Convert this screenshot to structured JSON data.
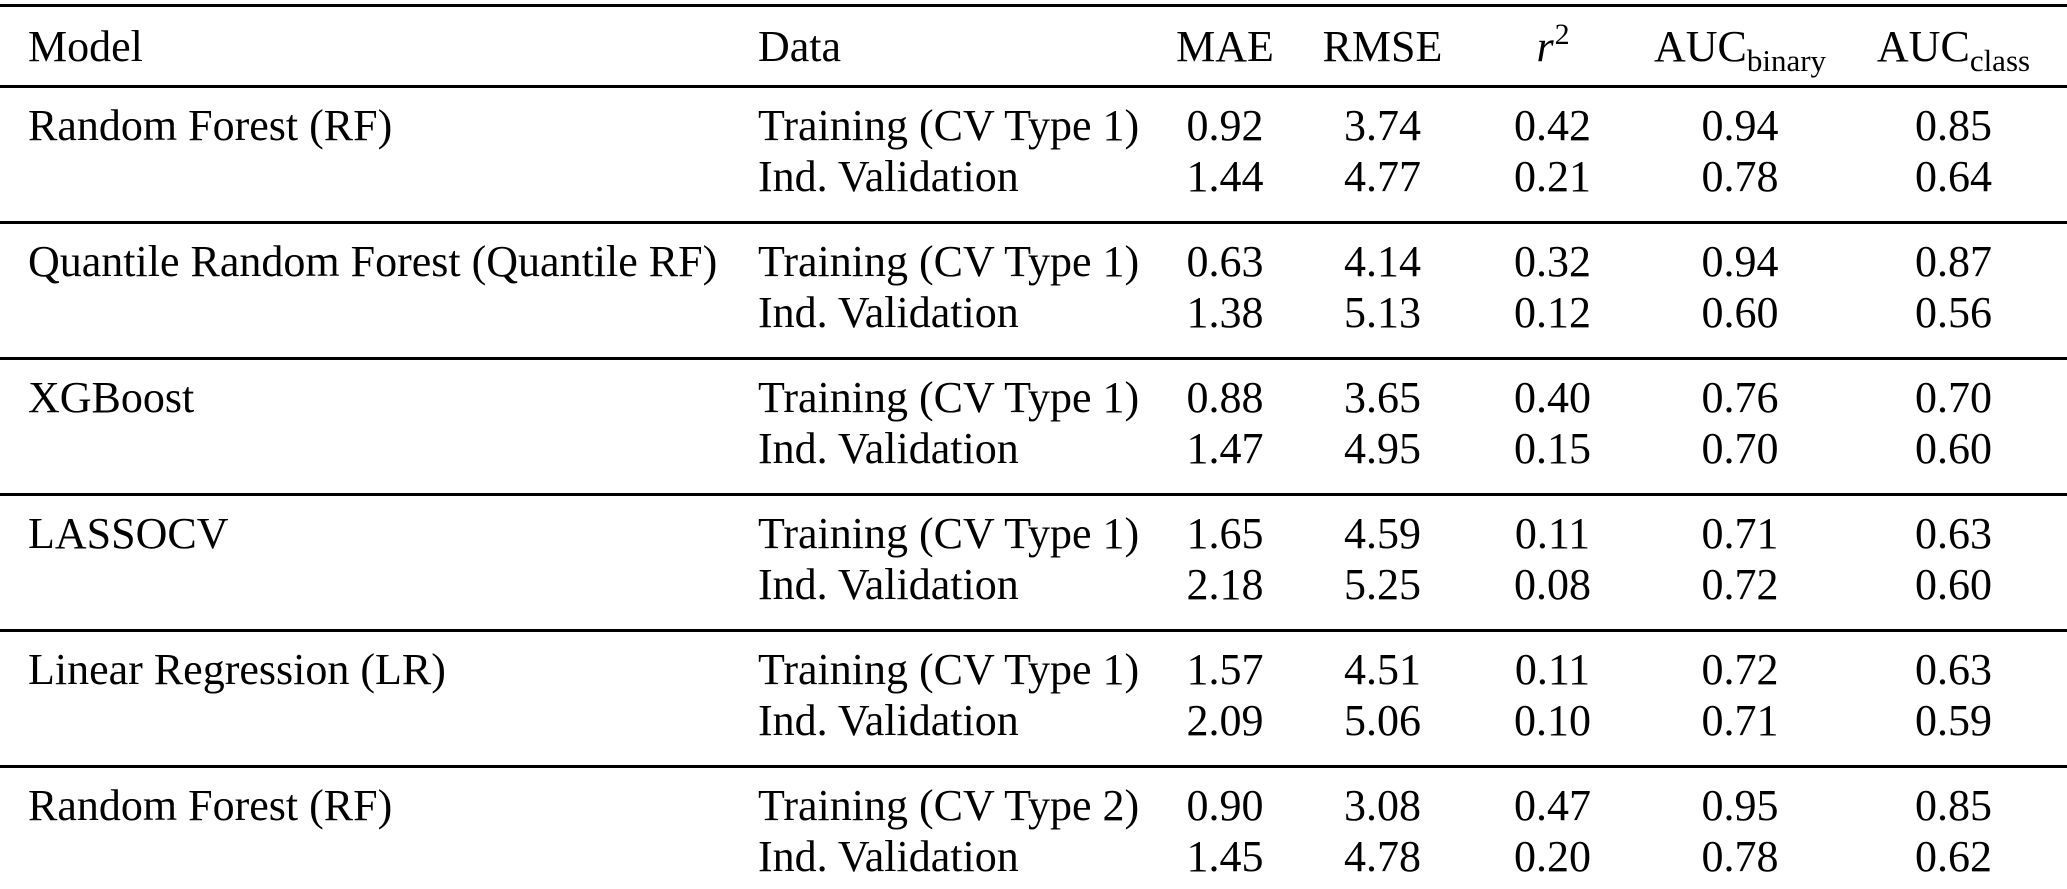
{
  "page": {
    "background": "#ffffff",
    "text_color": "#000000",
    "rule_color": "#000000"
  },
  "table": {
    "columns": [
      {
        "key": "model",
        "label": "Model",
        "align": "left"
      },
      {
        "key": "data",
        "label": "Data",
        "align": "left"
      },
      {
        "key": "mae",
        "label": "MAE",
        "align": "center"
      },
      {
        "key": "rmse",
        "label": "RMSE",
        "align": "center"
      },
      {
        "key": "r2",
        "label": "r",
        "sup": "2",
        "italic": true,
        "align": "center"
      },
      {
        "key": "auc_binary",
        "label": "AUC",
        "sub": "binary",
        "align": "center"
      },
      {
        "key": "auc_class",
        "label": "AUC",
        "sub": "class",
        "align": "center"
      }
    ],
    "groups": [
      {
        "model": "Random Forest (RF)",
        "rows": [
          {
            "data": "Training (CV Type 1)",
            "mae": "0.92",
            "rmse": "3.74",
            "r2": "0.42",
            "auc_binary": "0.94",
            "auc_class": "0.85"
          },
          {
            "data": "Ind. Validation",
            "mae": "1.44",
            "rmse": "4.77",
            "r2": "0.21",
            "auc_binary": "0.78",
            "auc_class": "0.64"
          }
        ]
      },
      {
        "model": "Quantile Random Forest (Quantile RF)",
        "rows": [
          {
            "data": "Training (CV Type 1)",
            "mae": "0.63",
            "rmse": "4.14",
            "r2": "0.32",
            "auc_binary": "0.94",
            "auc_class": "0.87"
          },
          {
            "data": "Ind. Validation",
            "mae": "1.38",
            "rmse": "5.13",
            "r2": "0.12",
            "auc_binary": "0.60",
            "auc_class": "0.56"
          }
        ]
      },
      {
        "model": "XGBoost",
        "rows": [
          {
            "data": "Training (CV Type 1)",
            "mae": "0.88",
            "rmse": "3.65",
            "r2": "0.40",
            "auc_binary": "0.76",
            "auc_class": "0.70"
          },
          {
            "data": "Ind. Validation",
            "mae": "1.47",
            "rmse": "4.95",
            "r2": "0.15",
            "auc_binary": "0.70",
            "auc_class": "0.60"
          }
        ]
      },
      {
        "model": "LASSOCV",
        "rows": [
          {
            "data": "Training (CV Type 1)",
            "mae": "1.65",
            "rmse": "4.59",
            "r2": "0.11",
            "auc_binary": "0.71",
            "auc_class": "0.63"
          },
          {
            "data": "Ind. Validation",
            "mae": "2.18",
            "rmse": "5.25",
            "r2": "0.08",
            "auc_binary": "0.72",
            "auc_class": "0.60"
          }
        ]
      },
      {
        "model": "Linear Regression (LR)",
        "rows": [
          {
            "data": "Training (CV Type 1)",
            "mae": "1.57",
            "rmse": "4.51",
            "r2": "0.11",
            "auc_binary": "0.72",
            "auc_class": "0.63"
          },
          {
            "data": "Ind. Validation",
            "mae": "2.09",
            "rmse": "5.06",
            "r2": "0.10",
            "auc_binary": "0.71",
            "auc_class": "0.59"
          }
        ]
      },
      {
        "model": "Random Forest (RF)",
        "rows": [
          {
            "data": "Training (CV Type 2)",
            "mae": "0.90",
            "rmse": "3.08",
            "r2": "0.47",
            "auc_binary": "0.95",
            "auc_class": "0.85"
          },
          {
            "data": "Ind. Validation",
            "mae": "1.45",
            "rmse": "4.78",
            "r2": "0.20",
            "auc_binary": "0.78",
            "auc_class": "0.62"
          }
        ]
      }
    ]
  },
  "chart_data": {
    "type": "table",
    "title": "",
    "columns": [
      "Model",
      "Data",
      "MAE",
      "RMSE",
      "r2",
      "AUC_binary",
      "AUC_class"
    ],
    "rows": [
      [
        "Random Forest (RF)",
        "Training (CV Type 1)",
        0.92,
        3.74,
        0.42,
        0.94,
        0.85
      ],
      [
        "Random Forest (RF)",
        "Ind. Validation",
        1.44,
        4.77,
        0.21,
        0.78,
        0.64
      ],
      [
        "Quantile Random Forest (Quantile RF)",
        "Training (CV Type 1)",
        0.63,
        4.14,
        0.32,
        0.94,
        0.87
      ],
      [
        "Quantile Random Forest (Quantile RF)",
        "Ind. Validation",
        1.38,
        5.13,
        0.12,
        0.6,
        0.56
      ],
      [
        "XGBoost",
        "Training (CV Type 1)",
        0.88,
        3.65,
        0.4,
        0.76,
        0.7
      ],
      [
        "XGBoost",
        "Ind. Validation",
        1.47,
        4.95,
        0.15,
        0.7,
        0.6
      ],
      [
        "LASSOCV",
        "Training (CV Type 1)",
        1.65,
        4.59,
        0.11,
        0.71,
        0.63
      ],
      [
        "LASSOCV",
        "Ind. Validation",
        2.18,
        5.25,
        0.08,
        0.72,
        0.6
      ],
      [
        "Linear Regression (LR)",
        "Training (CV Type 1)",
        1.57,
        4.51,
        0.11,
        0.72,
        0.63
      ],
      [
        "Linear Regression (LR)",
        "Ind. Validation",
        2.09,
        5.06,
        0.1,
        0.71,
        0.59
      ],
      [
        "Random Forest (RF)",
        "Training (CV Type 2)",
        0.9,
        3.08,
        0.47,
        0.95,
        0.85
      ],
      [
        "Random Forest (RF)",
        "Ind. Validation",
        1.45,
        4.78,
        0.2,
        0.78,
        0.62
      ]
    ]
  }
}
